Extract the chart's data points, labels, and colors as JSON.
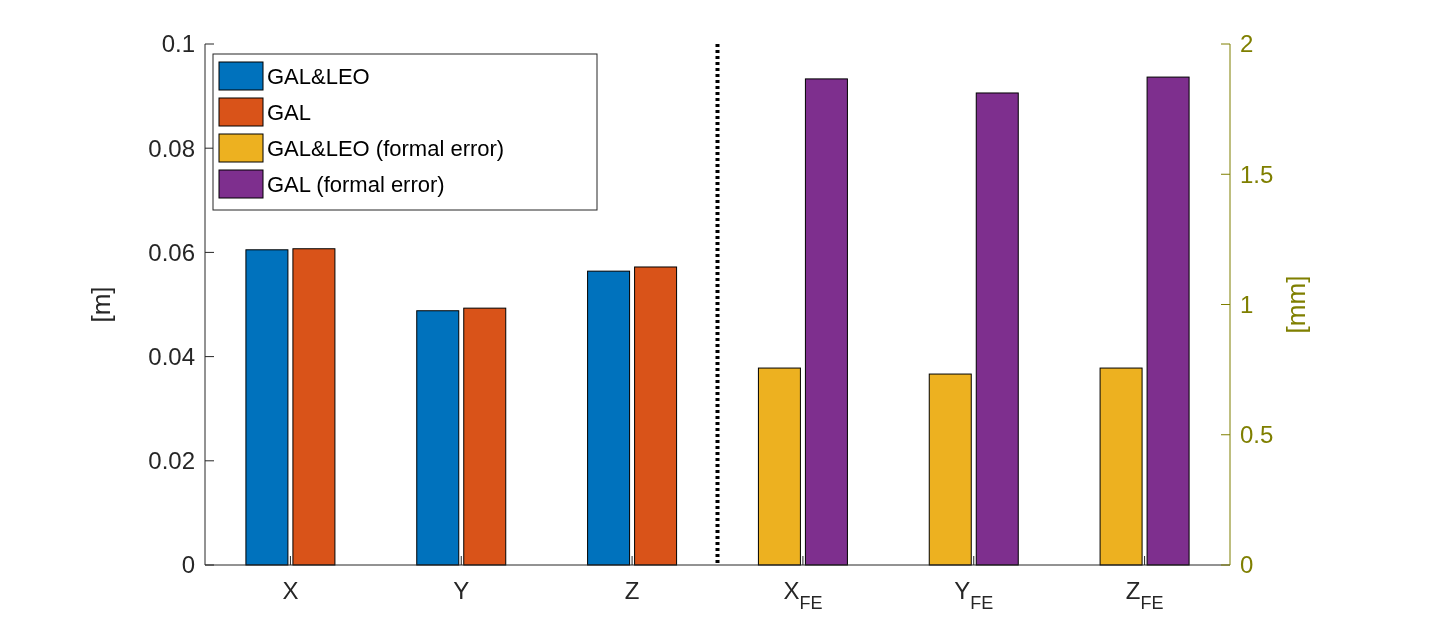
{
  "chart_data": {
    "type": "bar",
    "categories": [
      "X",
      "Y",
      "Z",
      "X$_{FE}$",
      "Y$_{FE}$",
      "Z$_{FE}$"
    ],
    "ylabel": "[m]",
    "y2label": "[mm]",
    "ylim": [
      0,
      0.1
    ],
    "yticks": [
      0,
      0.02,
      0.04,
      0.06,
      0.08,
      0.1
    ],
    "y2lim": [
      0,
      2
    ],
    "y2ticks": [
      0,
      0.5,
      1,
      1.5,
      2
    ],
    "series": [
      {
        "name": "GAL&LEO",
        "color": "#0072bd",
        "values": [
          0.0605,
          0.0488,
          0.0564,
          null,
          null,
          null
        ]
      },
      {
        "name": "GAL",
        "color": "#d95319",
        "values": [
          0.0607,
          0.0493,
          0.0572,
          null,
          null,
          null
        ]
      },
      {
        "name": "GAL&LEO (formal error)",
        "color": "#edb120",
        "axis": "y2",
        "values": [
          null,
          null,
          null,
          0.756,
          0.733,
          0.756
        ]
      },
      {
        "name": "GAL (formal error)",
        "color": "#7e2f8e",
        "axis": "y2",
        "values": [
          null,
          null,
          null,
          1.866,
          1.812,
          1.873
        ]
      }
    ],
    "legend": "top left",
    "grid": false
  }
}
